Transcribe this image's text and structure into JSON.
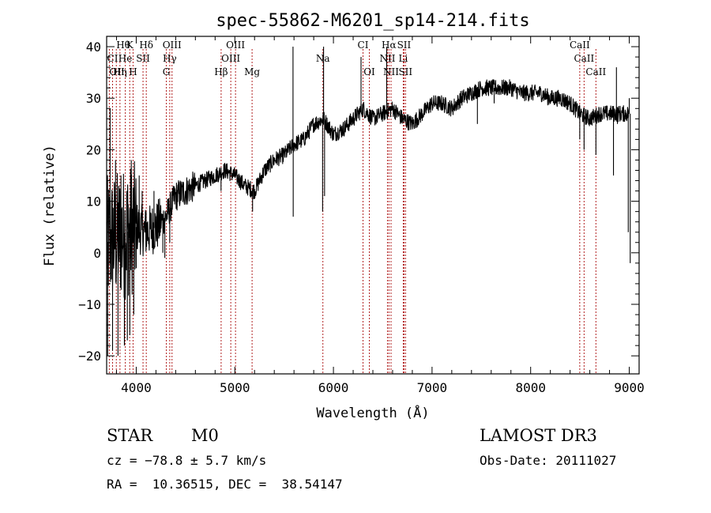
{
  "chart_data": {
    "type": "line",
    "title": "spec-55862-M6201_sp14-214.fits",
    "xlabel": "Wavelength (Å)",
    "ylabel": "Flux (relative)",
    "xlim": [
      3700,
      9100
    ],
    "ylim": [
      -23.5,
      42
    ],
    "xticks": [
      4000,
      5000,
      6000,
      7000,
      8000,
      9000
    ],
    "xtick_labels": [
      "4000",
      "5000",
      "6000",
      "7000",
      "8000",
      "9000"
    ],
    "yticks": [
      -20,
      -10,
      0,
      10,
      20,
      30,
      40
    ],
    "ytick_labels": [
      "−20",
      "−10",
      "0",
      "10",
      "20",
      "30",
      "40"
    ],
    "line_color": "#000000",
    "marker_color": "#b22222",
    "continuum": [
      [
        3700,
        2
      ],
      [
        3800,
        3
      ],
      [
        3900,
        4
      ],
      [
        4000,
        5
      ],
      [
        4100,
        4
      ],
      [
        4200,
        5
      ],
      [
        4300,
        7
      ],
      [
        4400,
        11
      ],
      [
        4500,
        12
      ],
      [
        4600,
        13
      ],
      [
        4700,
        14
      ],
      [
        4800,
        15
      ],
      [
        4900,
        16
      ],
      [
        5000,
        15
      ],
      [
        5100,
        13
      ],
      [
        5200,
        12
      ],
      [
        5300,
        16
      ],
      [
        5400,
        18
      ],
      [
        5500,
        19
      ],
      [
        5600,
        21
      ],
      [
        5700,
        22
      ],
      [
        5800,
        25
      ],
      [
        5900,
        26
      ],
      [
        6000,
        23
      ],
      [
        6100,
        24
      ],
      [
        6200,
        26
      ],
      [
        6300,
        28
      ],
      [
        6400,
        26
      ],
      [
        6500,
        27
      ],
      [
        6600,
        28
      ],
      [
        6700,
        26
      ],
      [
        6800,
        25
      ],
      [
        6900,
        27
      ],
      [
        7000,
        29
      ],
      [
        7100,
        29
      ],
      [
        7200,
        28
      ],
      [
        7300,
        30
      ],
      [
        7400,
        31
      ],
      [
        7500,
        32
      ],
      [
        7600,
        32
      ],
      [
        7700,
        32
      ],
      [
        7800,
        32
      ],
      [
        7900,
        31
      ],
      [
        8000,
        31
      ],
      [
        8100,
        31
      ],
      [
        8200,
        30
      ],
      [
        8300,
        30
      ],
      [
        8400,
        29
      ],
      [
        8500,
        27
      ],
      [
        8600,
        26
      ],
      [
        8700,
        27
      ],
      [
        8800,
        27
      ],
      [
        8900,
        27
      ],
      [
        9000,
        27
      ]
    ],
    "spikes": [
      [
        3710,
        -20
      ],
      [
        3735,
        28
      ],
      [
        3760,
        -19
      ],
      [
        3790,
        18
      ],
      [
        3815,
        -20
      ],
      [
        3845,
        15
      ],
      [
        3880,
        -18
      ],
      [
        3910,
        -17
      ],
      [
        3935,
        -16
      ],
      [
        3950,
        18
      ],
      [
        3975,
        -12
      ],
      [
        4000,
        -3
      ],
      [
        4030,
        15
      ],
      [
        4060,
        12
      ],
      [
        4100,
        8
      ],
      [
        4180,
        12
      ],
      [
        4270,
        0
      ],
      [
        4290,
        -1
      ],
      [
        4340,
        2
      ],
      [
        4860,
        12
      ],
      [
        5180,
        8
      ],
      [
        5590,
        40
      ],
      [
        5592,
        7
      ],
      [
        5890,
        8
      ],
      [
        5900,
        40
      ],
      [
        5910,
        11
      ],
      [
        6280,
        38
      ],
      [
        6540,
        40
      ],
      [
        6565,
        28
      ],
      [
        7460,
        25
      ],
      [
        7630,
        29
      ],
      [
        8498,
        22
      ],
      [
        8542,
        20
      ],
      [
        8662,
        19
      ],
      [
        8840,
        15
      ],
      [
        8870,
        36
      ],
      [
        8880,
        25
      ],
      [
        8990,
        4
      ],
      [
        9000,
        30
      ],
      [
        9010,
        -2
      ]
    ],
    "lines": [
      {
        "label": "Hθ",
        "x": 3798,
        "row": 0,
        "align": "left"
      },
      {
        "label": "K",
        "x": 3934,
        "row": 0,
        "align": "center"
      },
      {
        "label": "Hδ",
        "x": 4102,
        "row": 0,
        "align": "center"
      },
      {
        "label": "OIII",
        "x": 4363,
        "row": 0,
        "align": "center"
      },
      {
        "label": "OIII",
        "x": 5007,
        "row": 0,
        "align": "center"
      },
      {
        "label": "CI",
        "x": 6300,
        "row": 0,
        "align": "center"
      },
      {
        "label": "Hα",
        "x": 6563,
        "row": 0,
        "align": "center"
      },
      {
        "label": "SII",
        "x": 6716,
        "row": 0,
        "align": "center"
      },
      {
        "label": "CaII",
        "x": 8498,
        "row": 0,
        "align": "center"
      },
      {
        "label": "CI",
        "x": 3760,
        "row": 1,
        "align": "center"
      },
      {
        "label": "He",
        "x": 3889,
        "row": 1,
        "align": "center"
      },
      {
        "label": "SII",
        "x": 4069,
        "row": 1,
        "align": "center"
      },
      {
        "label": "Hγ",
        "x": 4340,
        "row": 1,
        "align": "center"
      },
      {
        "label": "OIII",
        "x": 4959,
        "row": 1,
        "align": "center"
      },
      {
        "label": "Na",
        "x": 5893,
        "row": 1,
        "align": "center"
      },
      {
        "label": "NII",
        "x": 6548,
        "row": 1,
        "align": "center"
      },
      {
        "label": "Li",
        "x": 6708,
        "row": 1,
        "align": "center"
      },
      {
        "label": "CaII",
        "x": 8542,
        "row": 1,
        "align": "center"
      },
      {
        "label": "OII",
        "x": 3727,
        "row": 2,
        "align": "left"
      },
      {
        "label": "Hη",
        "x": 3835,
        "row": 2,
        "align": "center"
      },
      {
        "label": "H",
        "x": 3968,
        "row": 2,
        "align": "center"
      },
      {
        "label": "G",
        "x": 4305,
        "row": 2,
        "align": "center"
      },
      {
        "label": "Hβ",
        "x": 4861,
        "row": 2,
        "align": "center"
      },
      {
        "label": "Mg",
        "x": 5175,
        "row": 2,
        "align": "center"
      },
      {
        "label": "OI",
        "x": 6364,
        "row": 2,
        "align": "center"
      },
      {
        "label": "NII",
        "x": 6584,
        "row": 2,
        "align": "center"
      },
      {
        "label": "SII",
        "x": 6731,
        "row": 2,
        "align": "center"
      },
      {
        "label": "CaII",
        "x": 8662,
        "row": 2,
        "align": "center"
      }
    ],
    "marker_x": [
      3727,
      3760,
      3798,
      3835,
      3889,
      3934,
      3968,
      4069,
      4102,
      4305,
      4340,
      4363,
      4861,
      4959,
      5007,
      5175,
      5893,
      6300,
      6364,
      6548,
      6563,
      6584,
      6708,
      6716,
      6731,
      8498,
      8542,
      8662
    ]
  },
  "info": {
    "object_class": "STAR",
    "subclass": "M0",
    "survey": "LAMOST DR3",
    "redshift": "cz = −78.8 ± 5.7 km/s",
    "obs_date": "Obs-Date: 20111027",
    "coords": "RA =  10.36515, DEC =  38.54147"
  }
}
